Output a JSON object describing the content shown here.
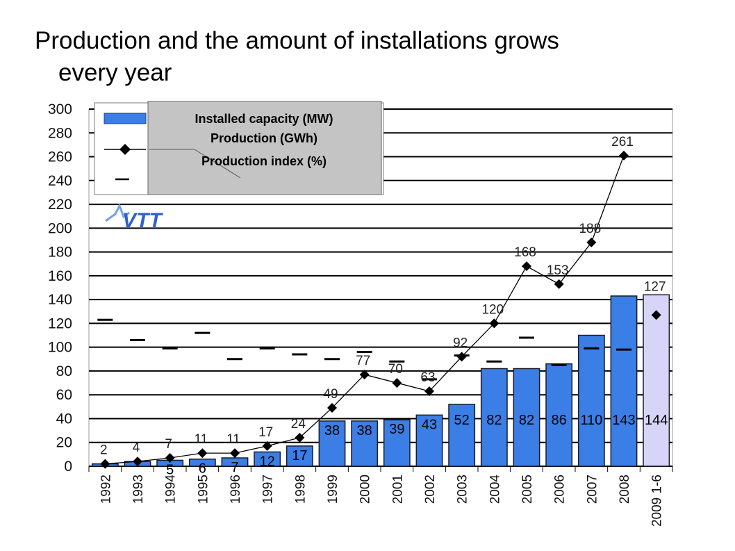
{
  "slide": {
    "title_line1": "Production and the amount of installations grows",
    "title_line2": "every year"
  },
  "logo_text": "VTT",
  "chart_data": {
    "type": "bar",
    "categories": [
      "1992",
      "1993",
      "1994",
      "1995",
      "1996",
      "1997",
      "1998",
      "1999",
      "2000",
      "2001",
      "2002",
      "2003",
      "2004",
      "2005",
      "2006",
      "2007",
      "2008",
      "2009 1-6"
    ],
    "series": [
      {
        "name": "Installed capacity (MW)",
        "type": "bar",
        "color": "#3a7ee6",
        "highlight_color": "#d6d4f7",
        "values": [
          2,
          4,
          5,
          6,
          7,
          12,
          17,
          38,
          38,
          39,
          43,
          52,
          82,
          82,
          86,
          110,
          143,
          144
        ],
        "labels": [
          "",
          "",
          "5",
          "6",
          "7",
          "12",
          "17",
          "38",
          "38",
          "39",
          "43",
          "52",
          "82",
          "82",
          "86",
          "110",
          "143",
          "144"
        ]
      },
      {
        "name": "Production (GWh)",
        "type": "line",
        "color": "#000000",
        "values": [
          2,
          4,
          7,
          11,
          11,
          17,
          24,
          49,
          77,
          70,
          63,
          92,
          120,
          168,
          153,
          188,
          261,
          127
        ],
        "labels": [
          "2",
          "4",
          "7",
          "11",
          "11",
          "17",
          "24",
          "49",
          "77",
          "70",
          "63",
          "92",
          "120",
          "168",
          "153",
          "188",
          "261",
          "127"
        ]
      },
      {
        "name": "Production index (%)",
        "type": "marker",
        "color": "#000000",
        "values": [
          123,
          106,
          99,
          112,
          90,
          99,
          94,
          90,
          96,
          88,
          73,
          93,
          88,
          108,
          85,
          99,
          98,
          null
        ]
      }
    ],
    "ylim": [
      0,
      300
    ],
    "yticks": [
      0,
      20,
      40,
      60,
      80,
      100,
      120,
      140,
      160,
      180,
      200,
      220,
      240,
      260,
      280,
      300
    ],
    "grid": true,
    "legend_position": "top-left"
  }
}
